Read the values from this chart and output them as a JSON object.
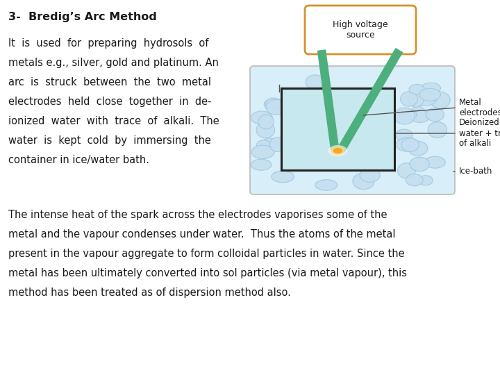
{
  "title": "3-  Bredig’s Arc Method",
  "para1_lines": [
    "It  is  used  for  preparing  hydrosols  of",
    "metals e.g., silver, gold and platinum. An",
    "arc  is  struck  between  the  two  metal",
    "electrodes  held  close  together  in  de-",
    "ionized  water  with  trace  of  alkali.  The",
    "water  is  kept  cold  by  immersing  the",
    "container in ice/water bath."
  ],
  "para2_lines": [
    "The intense heat of the spark across the electrodes vaporises some of the",
    "metal and the vapour condenses under water.  Thus the atoms of the metal",
    "present in the vapour aggregate to form colloidal particles in water. Since the",
    "metal has been ultimately converted into sol particles (via metal vapour), this",
    "method has been treated as of dispersion method also."
  ],
  "diagram": {
    "hv_box_color": "#D4922A",
    "hv_box_text": "High voltage\nsource",
    "electrode_color": "#4CAF7D",
    "water_color": "#C8E8F0",
    "ice_bath_color": "#D8EEF8",
    "container_edge": "#222222",
    "spark_color": "#F5A623",
    "spark_inner": "#FFD580",
    "label_metal_electrodes": "Metal\nelectrodes",
    "label_deionized": "Deionized\nwater + trace\nof alkali",
    "label_ice_bath": "Ice-bath",
    "bubble_face": "#C5DFF0",
    "bubble_edge": "#A0C8E0"
  },
  "bg_color": "#ffffff",
  "text_color": "#1a1a1a",
  "title_fontsize": 11.5,
  "body_fontsize": 10.5,
  "para2_fontsize": 10.5
}
